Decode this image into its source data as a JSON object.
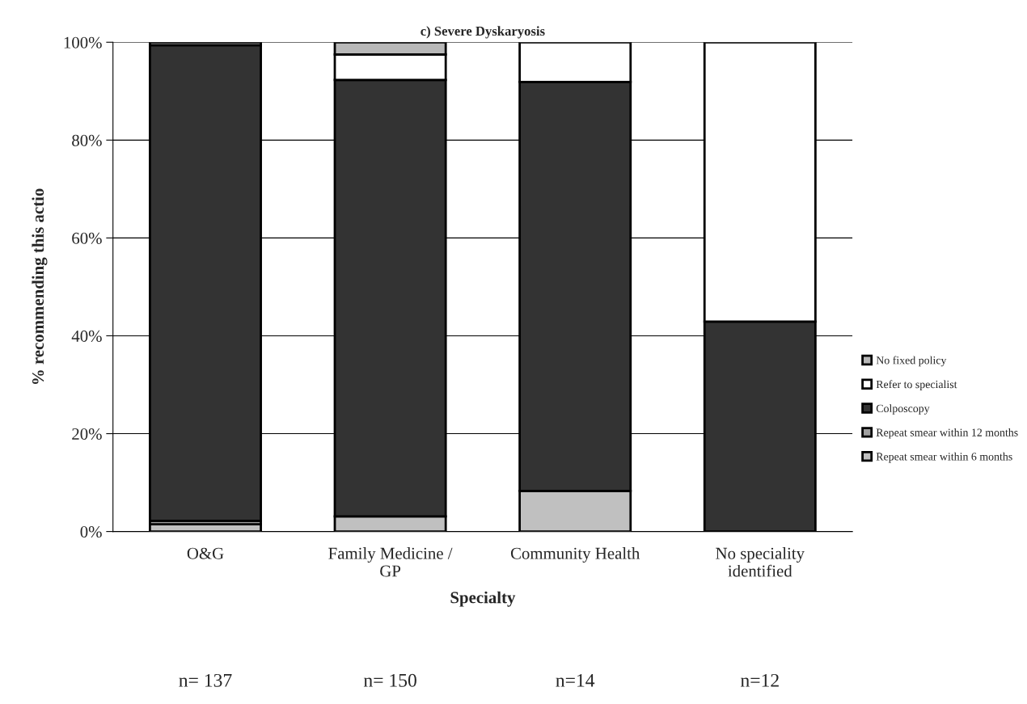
{
  "chart_data": {
    "type": "bar",
    "stacked": true,
    "title": "c) Severe Dyskaryosis",
    "xlabel": "Specialty",
    "ylabel": "% recommending this actio",
    "categories": [
      "O&G",
      "Family Medicine /\nGP",
      "Community Health",
      "No speciality\nidentified"
    ],
    "series": [
      {
        "name": "Repeat smear within 6 months",
        "color": "#c0c0c0",
        "values": [
          1.5,
          3.1,
          8.3,
          0
        ]
      },
      {
        "name": "Repeat smear within 12 months",
        "color": "#a0a0a0",
        "values": [
          0.7,
          0,
          0,
          0
        ]
      },
      {
        "name": "Colposcopy",
        "color": "#333333",
        "values": [
          97.2,
          89.2,
          83.6,
          42.9
        ]
      },
      {
        "name": "Refer to specialist",
        "color": "#ffffff",
        "values": [
          0,
          5.2,
          8.1,
          57.1
        ]
      },
      {
        "name": "No fixed policy",
        "color": "#b8b8b8",
        "values": [
          0.6,
          2.5,
          0,
          0
        ]
      }
    ],
    "ylim": [
      0,
      100
    ],
    "yticks": [
      {
        "value": 0,
        "label": "0%"
      },
      {
        "value": 20,
        "label": "20%"
      },
      {
        "value": 40,
        "label": "40%"
      },
      {
        "value": 60,
        "label": "60%"
      },
      {
        "value": 80,
        "label": "80%"
      },
      {
        "value": 100,
        "label": "100%"
      }
    ],
    "grid": "y",
    "legend": "right",
    "annotations": [
      "n= 137",
      "n= 150",
      "n=14",
      "n=12"
    ]
  }
}
